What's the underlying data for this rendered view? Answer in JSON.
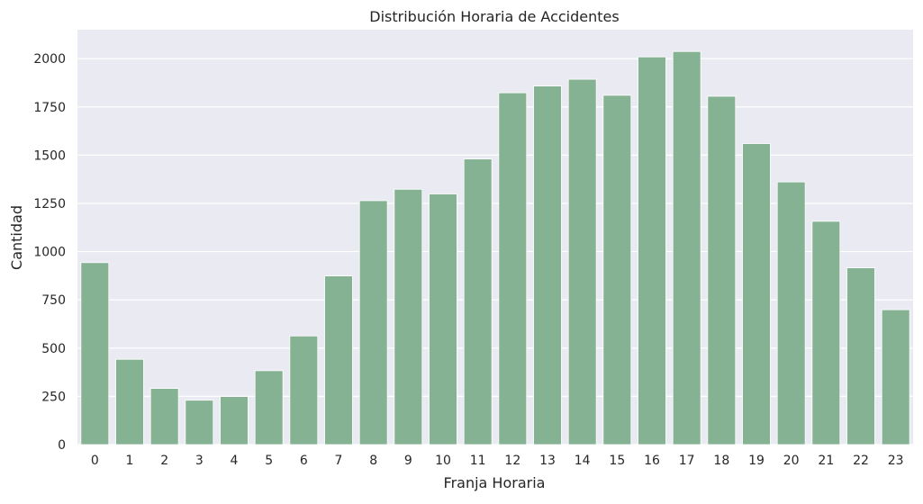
{
  "chart_data": {
    "type": "bar",
    "title": "Distribución Horaria de Accidentes",
    "xlabel": "Franja Horaria",
    "ylabel": "Cantidad",
    "categories": [
      "0",
      "1",
      "2",
      "3",
      "4",
      "5",
      "6",
      "7",
      "8",
      "9",
      "10",
      "11",
      "12",
      "13",
      "14",
      "15",
      "16",
      "17",
      "18",
      "19",
      "20",
      "21",
      "22",
      "23"
    ],
    "values": [
      943,
      442,
      291,
      230,
      249,
      383,
      563,
      874,
      1264,
      1323,
      1299,
      1480,
      1823,
      1858,
      1893,
      1810,
      2009,
      2037,
      1805,
      1560,
      1361,
      1157,
      916,
      699
    ],
    "ylim": [
      0,
      2150
    ],
    "yticks": [
      0,
      250,
      500,
      750,
      1000,
      1250,
      1500,
      1750,
      2000
    ],
    "grid": true,
    "colors": {
      "bar": "#84b292",
      "background": "#eaeaf2",
      "grid": "#ffffff",
      "text": "#262626"
    }
  }
}
